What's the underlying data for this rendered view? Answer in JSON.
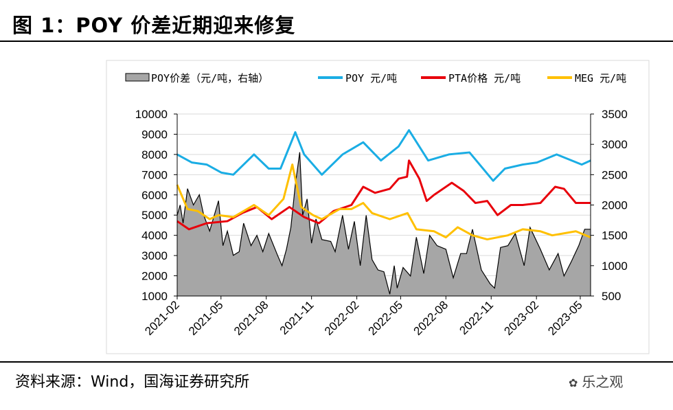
{
  "figure": {
    "title": "图 1：POY 价差近期迎来修复",
    "source": "资料来源：Wind，国海证券研究所",
    "watermark": "乐之观"
  },
  "chart_data": {
    "type": "line",
    "title": "",
    "xlabel": "",
    "ylabel": "",
    "x_range": [
      "2021-02-01",
      "2023-05-22"
    ],
    "x_tick_labels": [
      "2021-02",
      "2021-05",
      "2021-08",
      "2021-11",
      "2022-02",
      "2022-05",
      "2022-08",
      "2022-11",
      "2023-02",
      "2023-05"
    ],
    "ylim_left": [
      1000,
      10000
    ],
    "y_ticks_left": [
      "1000",
      "2000",
      "3000",
      "4000",
      "5000",
      "6000",
      "7000",
      "8000",
      "9000",
      "10000"
    ],
    "ylim_right": [
      500,
      3500
    ],
    "y_ticks_right": [
      "500",
      "1000",
      "1500",
      "2000",
      "2500",
      "3000",
      "3500"
    ],
    "grid": "horizontal",
    "legend_position": "top",
    "series": [
      {
        "name": "POY价差（元/吨，右轴）",
        "type": "area",
        "axis": "right",
        "color": "#A6A6A6",
        "edge_color": "#000000",
        "points": [
          [
            "2021-02-01",
            1830
          ],
          [
            "2021-02-07",
            2000
          ],
          [
            "2021-02-13",
            1700
          ],
          [
            "2021-02-22",
            2270
          ],
          [
            "2021-03-06",
            2000
          ],
          [
            "2021-03-18",
            2170
          ],
          [
            "2021-03-27",
            1830
          ],
          [
            "2021-04-08",
            1570
          ],
          [
            "2021-04-26",
            2070
          ],
          [
            "2021-05-05",
            1330
          ],
          [
            "2021-05-14",
            1570
          ],
          [
            "2021-05-26",
            1170
          ],
          [
            "2021-06-07",
            1230
          ],
          [
            "2021-06-16",
            1700
          ],
          [
            "2021-07-01",
            1330
          ],
          [
            "2021-07-13",
            1500
          ],
          [
            "2021-07-25",
            1230
          ],
          [
            "2021-08-06",
            1530
          ],
          [
            "2021-08-24",
            1170
          ],
          [
            "2021-09-02",
            1000
          ],
          [
            "2021-09-11",
            1270
          ],
          [
            "2021-09-20",
            1630
          ],
          [
            "2021-09-29",
            2330
          ],
          [
            "2021-10-08",
            2870
          ],
          [
            "2021-10-14",
            1830
          ],
          [
            "2021-10-23",
            2100
          ],
          [
            "2021-11-01",
            1370
          ],
          [
            "2021-11-10",
            1770
          ],
          [
            "2021-11-22",
            1430
          ],
          [
            "2021-12-10",
            1400
          ],
          [
            "2021-12-19",
            1230
          ],
          [
            "2022-01-03",
            1830
          ],
          [
            "2022-01-15",
            1270
          ],
          [
            "2022-01-27",
            1730
          ],
          [
            "2022-02-08",
            1000
          ],
          [
            "2022-02-20",
            1830
          ],
          [
            "2022-03-04",
            1100
          ],
          [
            "2022-03-16",
            930
          ],
          [
            "2022-03-28",
            900
          ],
          [
            "2022-04-09",
            530
          ],
          [
            "2022-04-18",
            1000
          ],
          [
            "2022-04-24",
            630
          ],
          [
            "2022-05-06",
            970
          ],
          [
            "2022-05-21",
            830
          ],
          [
            "2022-06-02",
            1470
          ],
          [
            "2022-06-17",
            870
          ],
          [
            "2022-06-29",
            1500
          ],
          [
            "2022-07-14",
            1330
          ],
          [
            "2022-08-01",
            1270
          ],
          [
            "2022-08-16",
            800
          ],
          [
            "2022-08-31",
            1200
          ],
          [
            "2022-09-12",
            1200
          ],
          [
            "2022-09-24",
            1600
          ],
          [
            "2022-10-12",
            930
          ],
          [
            "2022-10-30",
            700
          ],
          [
            "2022-11-08",
            630
          ],
          [
            "2022-11-20",
            1300
          ],
          [
            "2022-12-05",
            1330
          ],
          [
            "2022-12-20",
            1530
          ],
          [
            "2023-01-07",
            1000
          ],
          [
            "2023-01-19",
            1630
          ],
          [
            "2023-02-09",
            1270
          ],
          [
            "2023-02-27",
            930
          ],
          [
            "2023-03-17",
            1200
          ],
          [
            "2023-03-29",
            830
          ],
          [
            "2023-04-13",
            1070
          ],
          [
            "2023-04-28",
            1330
          ],
          [
            "2023-05-10",
            1600
          ],
          [
            "2023-05-22",
            1600
          ]
        ]
      },
      {
        "name": "POY 元/吨",
        "type": "line",
        "axis": "left",
        "color": "#1AADE4",
        "points": [
          [
            "2021-02-01",
            8000
          ],
          [
            "2021-03-03",
            7600
          ],
          [
            "2021-04-02",
            7500
          ],
          [
            "2021-05-02",
            7100
          ],
          [
            "2021-05-26",
            7000
          ],
          [
            "2021-07-07",
            8000
          ],
          [
            "2021-08-06",
            7300
          ],
          [
            "2021-08-30",
            7300
          ],
          [
            "2021-09-29",
            9100
          ],
          [
            "2021-10-17",
            8000
          ],
          [
            "2021-11-22",
            7000
          ],
          [
            "2022-01-03",
            8000
          ],
          [
            "2022-02-14",
            8600
          ],
          [
            "2022-03-22",
            7700
          ],
          [
            "2022-04-27",
            8400
          ],
          [
            "2022-05-18",
            9200
          ],
          [
            "2022-06-26",
            7700
          ],
          [
            "2022-08-07",
            8000
          ],
          [
            "2022-09-18",
            8100
          ],
          [
            "2022-11-05",
            6700
          ],
          [
            "2022-11-29",
            7300
          ],
          [
            "2023-01-04",
            7500
          ],
          [
            "2023-02-02",
            7600
          ],
          [
            "2023-03-14",
            8000
          ],
          [
            "2023-05-04",
            7500
          ],
          [
            "2023-05-22",
            7700
          ]
        ]
      },
      {
        "name": "PTA价格 元/吨",
        "type": "line",
        "axis": "left",
        "color": "#E8000B",
        "points": [
          [
            "2021-02-01",
            4700
          ],
          [
            "2021-02-25",
            4300
          ],
          [
            "2021-04-02",
            4600
          ],
          [
            "2021-05-14",
            4700
          ],
          [
            "2021-06-13",
            5100
          ],
          [
            "2021-07-13",
            5400
          ],
          [
            "2021-08-12",
            4800
          ],
          [
            "2021-09-17",
            5400
          ],
          [
            "2021-10-17",
            4900
          ],
          [
            "2021-11-16",
            4600
          ],
          [
            "2021-12-16",
            5200
          ],
          [
            "2022-01-21",
            5500
          ],
          [
            "2022-02-14",
            6400
          ],
          [
            "2022-03-10",
            6100
          ],
          [
            "2022-04-09",
            6300
          ],
          [
            "2022-04-27",
            6800
          ],
          [
            "2022-05-14",
            6900
          ],
          [
            "2022-05-18",
            7700
          ],
          [
            "2022-06-08",
            6800
          ],
          [
            "2022-06-23",
            5700
          ],
          [
            "2022-07-08",
            6000
          ],
          [
            "2022-08-13",
            6600
          ],
          [
            "2022-09-06",
            6200
          ],
          [
            "2022-09-30",
            5600
          ],
          [
            "2022-10-24",
            5700
          ],
          [
            "2022-11-14",
            5000
          ],
          [
            "2022-12-11",
            5500
          ],
          [
            "2023-01-04",
            5500
          ],
          [
            "2023-02-09",
            5600
          ],
          [
            "2023-03-11",
            6400
          ],
          [
            "2023-03-29",
            6300
          ],
          [
            "2023-04-22",
            5600
          ],
          [
            "2023-05-22",
            5600
          ]
        ]
      },
      {
        "name": "MEG 元/吨",
        "type": "line",
        "axis": "left",
        "color": "#FFC000",
        "points": [
          [
            "2021-02-01",
            6500
          ],
          [
            "2021-02-22",
            5300
          ],
          [
            "2021-03-15",
            5200
          ],
          [
            "2021-04-08",
            4800
          ],
          [
            "2021-04-26",
            5000
          ],
          [
            "2021-05-26",
            4900
          ],
          [
            "2021-07-07",
            5500
          ],
          [
            "2021-08-06",
            5000
          ],
          [
            "2021-09-05",
            5800
          ],
          [
            "2021-09-23",
            7500
          ],
          [
            "2021-10-11",
            5400
          ],
          [
            "2021-11-04",
            5000
          ],
          [
            "2021-11-22",
            4800
          ],
          [
            "2021-12-28",
            5300
          ],
          [
            "2022-01-21",
            5300
          ],
          [
            "2022-02-14",
            5600
          ],
          [
            "2022-03-04",
            5100
          ],
          [
            "2022-04-09",
            4800
          ],
          [
            "2022-05-15",
            5100
          ],
          [
            "2022-06-02",
            4300
          ],
          [
            "2022-07-08",
            4200
          ],
          [
            "2022-08-01",
            3900
          ],
          [
            "2022-08-25",
            4400
          ],
          [
            "2022-09-24",
            4000
          ],
          [
            "2022-10-24",
            3800
          ],
          [
            "2022-12-05",
            4000
          ],
          [
            "2023-01-04",
            4300
          ],
          [
            "2023-02-09",
            4200
          ],
          [
            "2023-03-05",
            4000
          ],
          [
            "2023-04-22",
            4200
          ],
          [
            "2023-05-22",
            3900
          ]
        ]
      }
    ]
  }
}
